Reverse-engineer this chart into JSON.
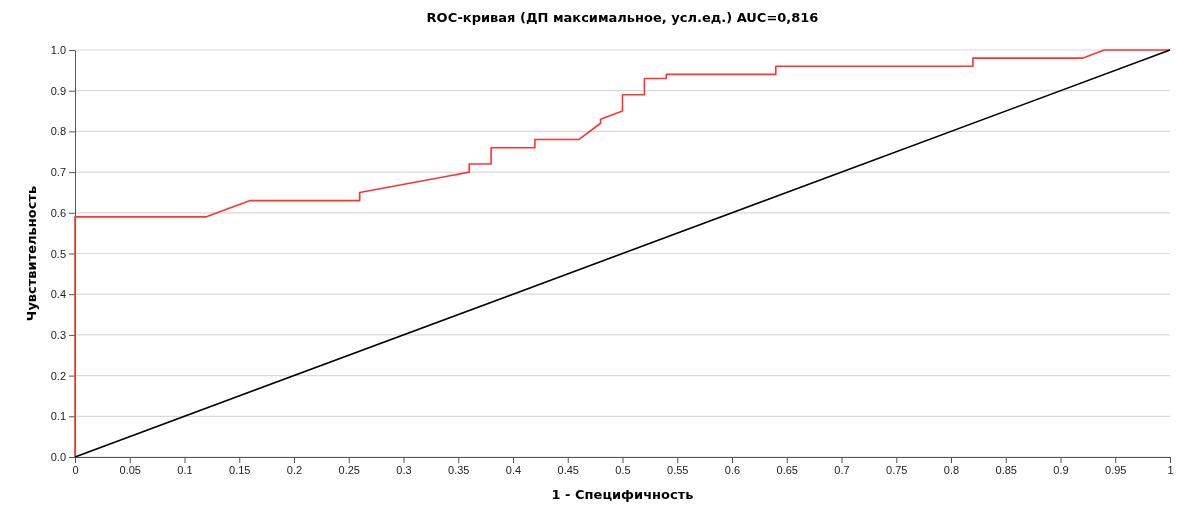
{
  "chart_data": {
    "type": "line",
    "title": "ROC-кривая (ДП максимальное, усл.ед.) AUC=0,816",
    "xlabel": "1 - Специфичность",
    "ylabel": "Чувствительность",
    "series": [
      {
        "color": "#ff3333",
        "x": [
          0,
          0,
          0.12,
          0.16,
          0.26,
          0.26,
          0.34,
          0.36,
          0.36,
          0.38,
          0.38,
          0.42,
          0.42,
          0.46,
          0.48,
          0.48,
          0.5,
          0.5,
          0.52,
          0.52,
          0.54,
          0.54,
          0.64,
          0.64,
          0.82,
          0.82,
          0.92,
          0.94,
          1
        ],
        "values": [
          0,
          0.59,
          0.59,
          0.63,
          0.63,
          0.65,
          0.69,
          0.7,
          0.72,
          0.72,
          0.76,
          0.76,
          0.78,
          0.78,
          0.82,
          0.83,
          0.85,
          0.89,
          0.89,
          0.93,
          0.93,
          0.94,
          0.94,
          0.96,
          0.96,
          0.98,
          0.98,
          1,
          1
        ]
      },
      {
        "color": "#000000",
        "x": [
          0,
          1
        ],
        "values": [
          0,
          1
        ]
      }
    ],
    "xlim": [
      0,
      1
    ],
    "ylim": [
      0,
      1
    ],
    "xticks": [
      0,
      0.05,
      0.1,
      0.15,
      0.2,
      0.25,
      0.3,
      0.35,
      0.4,
      0.45,
      0.5,
      0.55,
      0.6,
      0.65,
      0.7,
      0.75,
      0.8,
      0.85,
      0.9,
      0.95,
      1
    ],
    "yticks": [
      {
        "value": 0,
        "label": "0.0"
      },
      {
        "value": 0.1,
        "label": "0.1"
      },
      {
        "value": 0.2,
        "label": "0.2"
      },
      {
        "value": 0.3,
        "label": "0.3"
      },
      {
        "value": 0.4,
        "label": "0.4"
      },
      {
        "value": 0.5,
        "label": "0.5"
      },
      {
        "value": 0.6,
        "label": "0.6"
      },
      {
        "value": 0.7,
        "label": "0.7"
      },
      {
        "value": 0.8,
        "label": "0.8"
      },
      {
        "value": 0.9,
        "label": "0.9"
      },
      {
        "value": 1,
        "label": "1.0"
      }
    ],
    "grid": "y",
    "line_style": "solid",
    "marker": "none"
  }
}
